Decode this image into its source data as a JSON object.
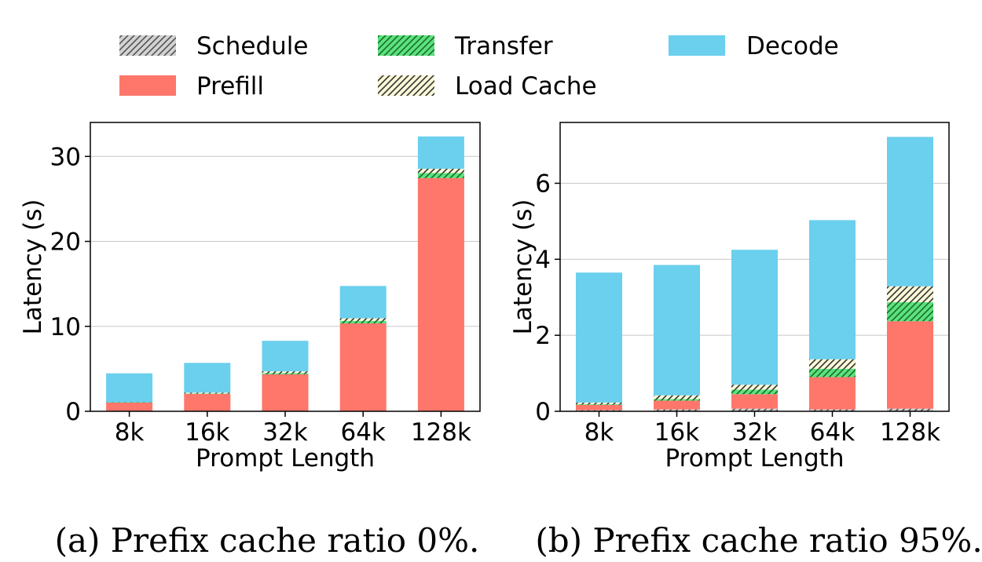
{
  "legend": {
    "items": [
      {
        "key": "schedule",
        "label": "Schedule",
        "color": "#d3d3d3",
        "hatch": true,
        "hatch_color": "#555555"
      },
      {
        "key": "transfer",
        "label": "Transfer",
        "color": "#5be37d",
        "hatch": true,
        "hatch_color": "#1d6b2e"
      },
      {
        "key": "decode",
        "label": "Decode",
        "color": "#6bcfee",
        "hatch": false
      },
      {
        "key": "prefill",
        "label": "Prefill",
        "color": "#ff766b",
        "hatch": false
      },
      {
        "key": "load_cache",
        "label": "Load Cache",
        "color": "#fbf8d8",
        "hatch": true,
        "hatch_color": "#333333"
      }
    ]
  },
  "captions": {
    "a": "(a) Prefix cache ratio 0%.",
    "b": "(b) Prefix cache ratio 95%."
  },
  "chart_data": [
    {
      "type": "bar",
      "stacked": true,
      "caption": "(a) Prefix cache ratio 0%.",
      "xlabel": "Prompt Length",
      "ylabel": "Latency (s)",
      "categories": [
        "8k",
        "16k",
        "32k",
        "64k",
        "128k"
      ],
      "ylim": [
        0,
        34
      ],
      "yticks": [
        0,
        10,
        20,
        30
      ],
      "grid": true,
      "series": [
        {
          "name": "Schedule",
          "key": "schedule",
          "values": [
            0.05,
            0.05,
            0.05,
            0.05,
            0.05
          ]
        },
        {
          "name": "Prefill",
          "key": "prefill",
          "values": [
            1.0,
            2.0,
            4.3,
            10.3,
            27.4
          ]
        },
        {
          "name": "Transfer",
          "key": "transfer",
          "values": [
            0.02,
            0.05,
            0.15,
            0.3,
            0.6
          ]
        },
        {
          "name": "Load Cache",
          "key": "load_cache",
          "values": [
            0.0,
            0.1,
            0.2,
            0.3,
            0.5
          ]
        },
        {
          "name": "Decode",
          "key": "decode",
          "values": [
            3.4,
            3.5,
            3.6,
            3.8,
            3.8
          ]
        }
      ]
    },
    {
      "type": "bar",
      "stacked": true,
      "caption": "(b) Prefix cache ratio 95%.",
      "xlabel": "Prompt Length",
      "ylabel": "Latency (s)",
      "categories": [
        "8k",
        "16k",
        "32k",
        "64k",
        "128k"
      ],
      "ylim": [
        0,
        7.6
      ],
      "yticks": [
        0,
        2,
        4,
        6
      ],
      "grid": true,
      "series": [
        {
          "name": "Schedule",
          "key": "schedule",
          "values": [
            0.03,
            0.05,
            0.07,
            0.05,
            0.07
          ]
        },
        {
          "name": "Prefill",
          "key": "prefill",
          "values": [
            0.14,
            0.23,
            0.38,
            0.85,
            2.3
          ]
        },
        {
          "name": "Transfer",
          "key": "transfer",
          "values": [
            0.02,
            0.04,
            0.12,
            0.22,
            0.5
          ]
        },
        {
          "name": "Load Cache",
          "key": "load_cache",
          "values": [
            0.04,
            0.1,
            0.13,
            0.25,
            0.42
          ]
        },
        {
          "name": "Decode",
          "key": "decode",
          "values": [
            3.42,
            3.43,
            3.55,
            3.66,
            3.93
          ]
        }
      ]
    }
  ]
}
